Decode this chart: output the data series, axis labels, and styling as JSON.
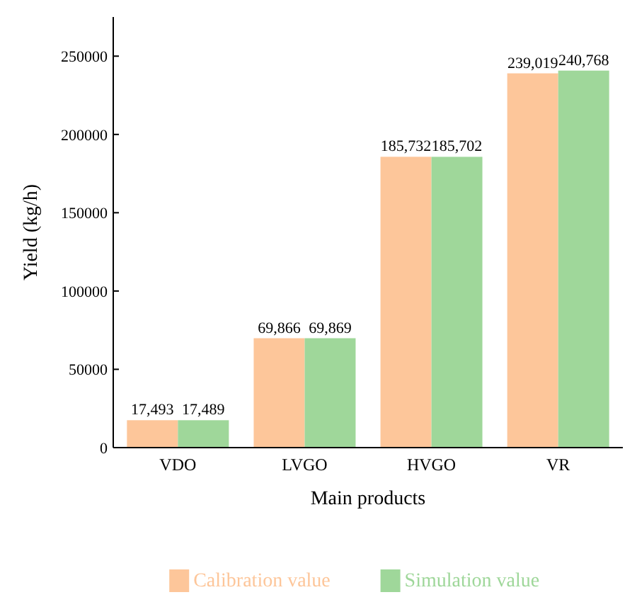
{
  "chart_data": {
    "type": "bar",
    "xlabel": "Main products",
    "ylabel": "Yield (kg/h)",
    "categories": [
      "VDO",
      "LVGO",
      "HVGO",
      "VR"
    ],
    "series": [
      {
        "name": "Calibration value",
        "color": "#fdc69a",
        "values": [
          17493,
          69866,
          185732,
          239019
        ],
        "value_labels": [
          "17,493",
          "69,866",
          "185,732",
          "239,019"
        ]
      },
      {
        "name": "Simulation value",
        "color": "#9fd79a",
        "values": [
          17489,
          69869,
          185702,
          240768
        ],
        "value_labels": [
          "17,489",
          "69,869",
          "185,702",
          "240,768"
        ]
      }
    ],
    "ylim": [
      0,
      275000
    ],
    "yticks": [
      0,
      50000,
      100000,
      150000,
      200000,
      250000
    ],
    "legend": "bottom"
  }
}
